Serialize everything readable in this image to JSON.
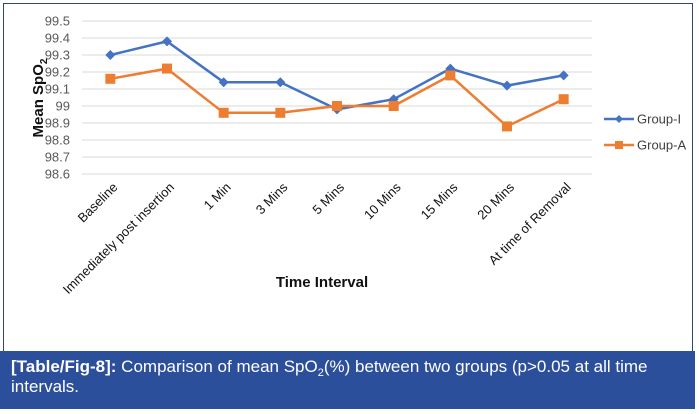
{
  "chart_data": {
    "type": "line",
    "title": "",
    "xlabel": "Time Interval",
    "ylabel": "Mean SpO",
    "ylabel_subscript": "2",
    "ylim": [
      98.6,
      99.5
    ],
    "yticks": [
      "99.5",
      "99.4",
      "99.3",
      "99.2",
      "99.1",
      "99",
      "98.9",
      "98.8",
      "98.7",
      "98.6"
    ],
    "categories": [
      "Baseline",
      "Immediately post insertion",
      "1 Min",
      "3 Mins",
      "5 Mins",
      "10 Mins",
      "15 Mins",
      "20 Mins",
      "At time of Removal"
    ],
    "grid": true,
    "legend_position": "right",
    "series": [
      {
        "name": "Group-I",
        "color": "#4472c4",
        "marker": "diamond",
        "values": [
          99.3,
          99.38,
          99.14,
          99.14,
          98.98,
          99.04,
          99.22,
          99.12,
          99.18
        ]
      },
      {
        "name": "Group-A",
        "color": "#ed7d31",
        "marker": "square",
        "values": [
          99.16,
          99.22,
          98.96,
          98.96,
          99.0,
          99.0,
          99.18,
          98.88,
          99.04
        ]
      }
    ]
  },
  "caption": {
    "label": "[Table/Fig-8]:",
    "text_before_sub": " Comparison of mean SpO",
    "sub": "2",
    "text_after_sub": "(%) between two groups (p>0.05 at all time intervals."
  },
  "colors": {
    "caption_bg": "#2c4f9b",
    "frame_border": "#2f4a6e",
    "grid": "#d9d9d9"
  }
}
